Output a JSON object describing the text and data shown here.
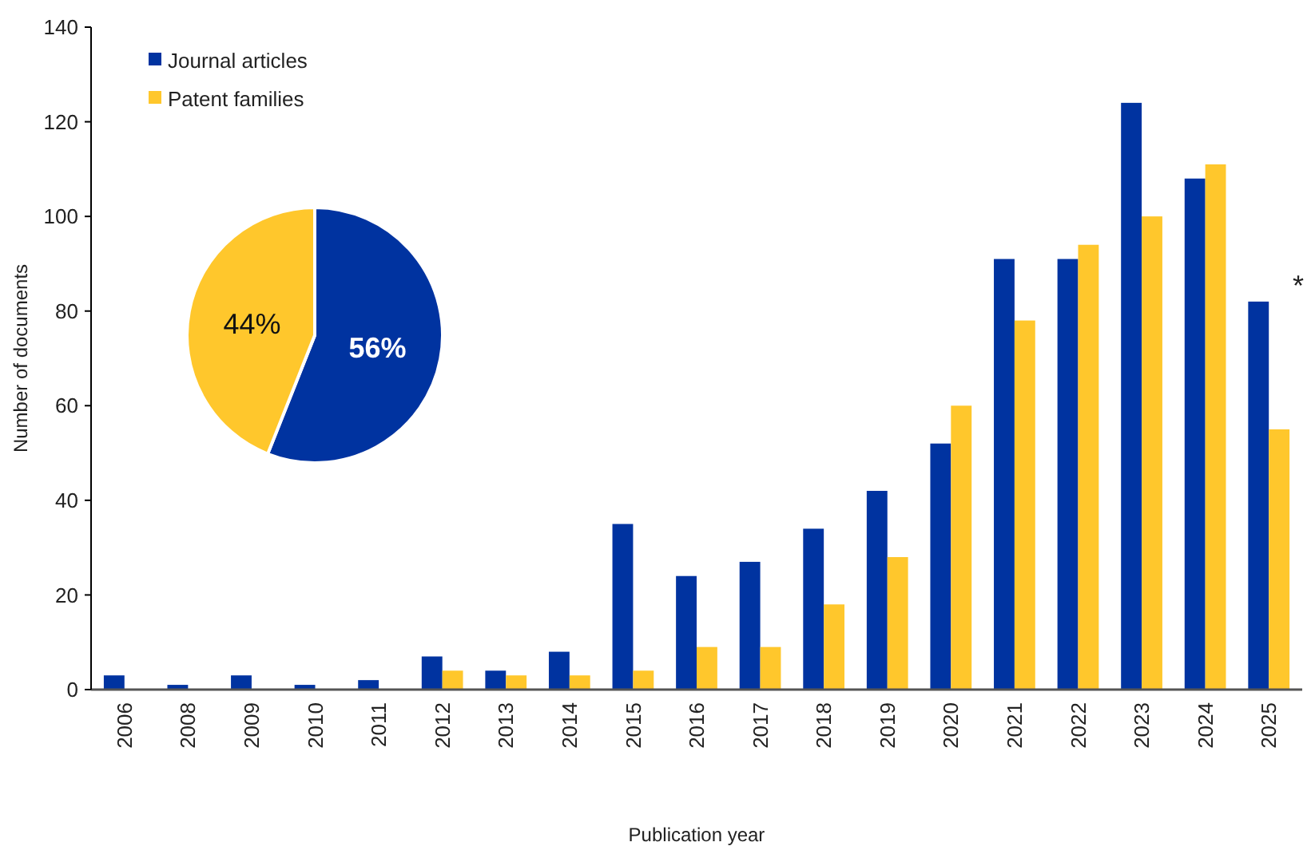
{
  "chart_data": [
    {
      "type": "bar",
      "xlabel": "Publication year",
      "ylabel": "Number of documents",
      "categories": [
        "2006",
        "2008",
        "2009",
        "2010",
        "2011",
        "2012",
        "2013",
        "2014",
        "2015",
        "2016",
        "2017",
        "2018",
        "2019",
        "2020",
        "2021",
        "2022",
        "2023",
        "2024",
        "2025"
      ],
      "series": [
        {
          "name": "Journal articles",
          "color": "#0033a0",
          "values": [
            3,
            1,
            3,
            1,
            2,
            7,
            4,
            8,
            35,
            24,
            27,
            34,
            42,
            52,
            91,
            91,
            124,
            108,
            82
          ]
        },
        {
          "name": "Patent families",
          "color": "#ffc72c",
          "values": [
            0,
            0,
            0,
            0,
            0,
            4,
            3,
            3,
            4,
            9,
            9,
            18,
            28,
            60,
            78,
            94,
            100,
            111,
            55
          ]
        }
      ],
      "ylim": [
        0,
        140
      ],
      "yticks": [
        0,
        20,
        40,
        60,
        80,
        100,
        120,
        140
      ],
      "grid": false,
      "legend": "top left",
      "annotations": [
        {
          "text": "*",
          "x": "2025",
          "y": 82
        }
      ]
    },
    {
      "type": "pie",
      "categories": [
        null,
        null
      ],
      "values": [
        56,
        44
      ],
      "colors": [
        "#0033a0",
        "#ffc72c"
      ],
      "value_labels": [
        "56%",
        "44%"
      ]
    }
  ]
}
